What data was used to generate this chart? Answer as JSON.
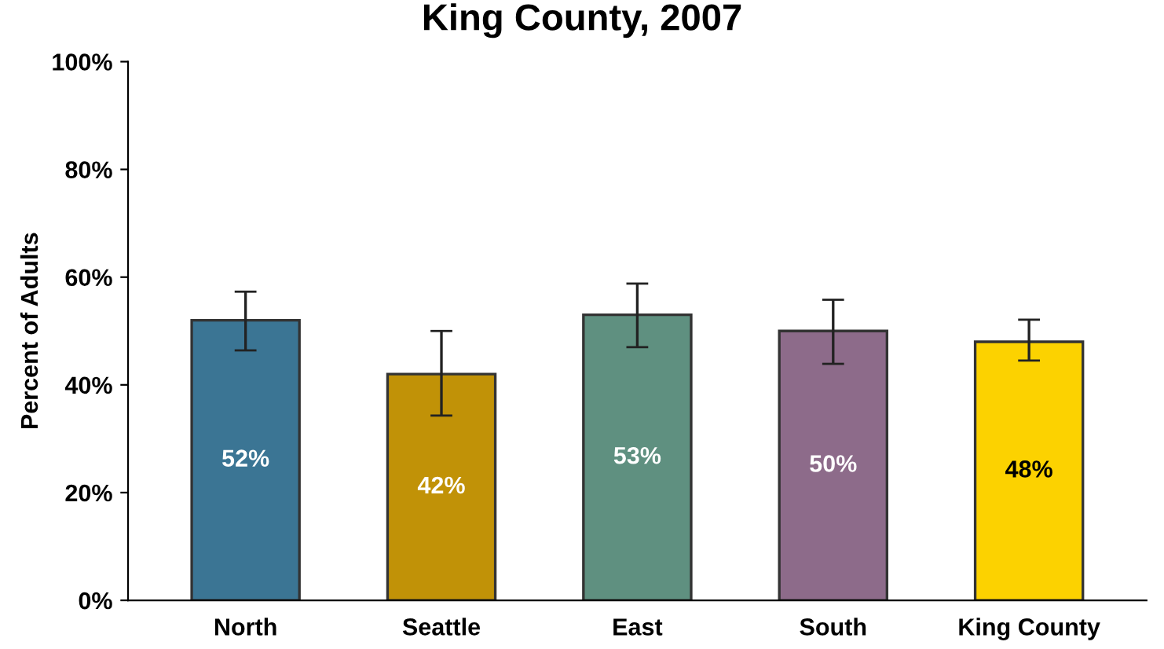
{
  "chart_data": {
    "type": "bar",
    "title": "King County, 2007",
    "ylabel": "Percent of Adults",
    "categories": [
      "North",
      "Seattle",
      "East",
      "South",
      "King County"
    ],
    "values": [
      52,
      42,
      53,
      50,
      48
    ],
    "colors": [
      "#3b7594",
      "#c19207",
      "#5f9080",
      "#8d6b8a",
      "#fcd200"
    ],
    "errors": [
      [
        46.4,
        57.3
      ],
      [
        34.3,
        50.0
      ],
      [
        47.0,
        58.8
      ],
      [
        43.9,
        55.8
      ],
      [
        44.5,
        52.1
      ]
    ],
    "value_labels": [
      "52%",
      "42%",
      "53%",
      "50%",
      "48%"
    ],
    "ylim": [
      0,
      100
    ],
    "yticks": [
      {
        "value": 0,
        "label": "0%"
      },
      {
        "value": 20,
        "label": "20%"
      },
      {
        "value": 40,
        "label": "40%"
      },
      {
        "value": 60,
        "label": "60%"
      },
      {
        "value": 80,
        "label": "80%"
      },
      {
        "value": 100,
        "label": "100%"
      }
    ],
    "grid": false,
    "legend": false
  }
}
